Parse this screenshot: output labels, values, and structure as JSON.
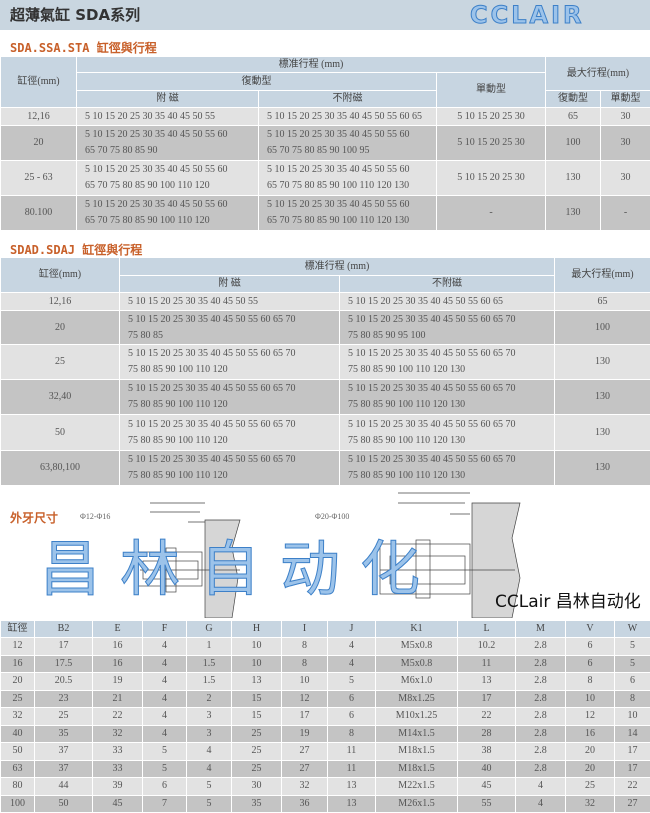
{
  "title": "超薄氣缸 SDA系列",
  "t1": {
    "heading": "SDA.SSA.STA 缸徑與行程",
    "h_bore": "缸徑(mm)",
    "h_std": "標准行程 (mm)",
    "h_double": "復動型",
    "h_single": "單動型",
    "h_mag": "附 磁",
    "h_nomag": "不附磁",
    "h_max": "最大行程(mm)",
    "h_max_double": "復動型",
    "h_max_single": "單動型",
    "rows": [
      {
        "bore": "12,16",
        "mag": [
          "5 10 15 20 25 30 35 40 45 50 55"
        ],
        "nomag": [
          "5 10 15 20 25 30 35 40 45 50 55 60 65"
        ],
        "single": "5 10 15 20 25 30",
        "maxd": "65",
        "maxs": "30"
      },
      {
        "bore": "20",
        "mag": [
          "5 10 15 20 25 30 35 40 45 50 55 60",
          "65 70 75 80 85 90"
        ],
        "nomag": [
          "5 10 15 20 25 30 35 40 45 50 55 60",
          "65 70 75 80 85 90 100 95"
        ],
        "single": "5 10 15 20 25 30",
        "maxd": "100",
        "maxs": "30"
      },
      {
        "bore": "25 - 63",
        "mag": [
          "5 10 15 20 25 30 35 40 45 50 55 60",
          "65 70 75 80 85 90 100 110 120"
        ],
        "nomag": [
          "5 10 15 20 25 30 35 40 45 50 55 60",
          "65 70 75 80 85 90 100 110 120 130"
        ],
        "single": "5 10 15 20 25 30",
        "maxd": "130",
        "maxs": "30"
      },
      {
        "bore": "80.100",
        "mag": [
          "5 10 15 20 25 30 35 40 45 50 55 60",
          "65 70 75 80 85 90 100 110 120"
        ],
        "nomag": [
          "5 10 15 20 25 30 35 40 45 50 55 60",
          "65 70 75 80 85 90 100 110 120 130"
        ],
        "single": "-",
        "maxd": "130",
        "maxs": "-"
      }
    ]
  },
  "watermark1": "CCLAIR",
  "t2": {
    "heading": "SDAD.SDAJ 缸徑與行程",
    "h_bore": "缸徑(mm)",
    "h_std": "標准行程 (mm)",
    "h_mag": "附 磁",
    "h_nomag": "不附磁",
    "h_max": "最大行程(mm)",
    "rows": [
      {
        "bore": "12,16",
        "mag": [
          "5 10 15 20 25 30 35 40 45 50 55"
        ],
        "nomag": [
          "5 10 15 20 25 30 35 40 45 50 55 60 65"
        ],
        "max": "65"
      },
      {
        "bore": "20",
        "mag": [
          "5 10 15 20 25 30 35 40 45 50 55 60 65 70",
          "75 80 85"
        ],
        "nomag": [
          "5 10 15 20 25 30 35 40 45 50 55 60 65 70",
          "75 80 85 90 95 100"
        ],
        "max": "100"
      },
      {
        "bore": "25",
        "mag": [
          "5 10 15 20 25 30 35 40 45 50 55 60 65 70",
          "75 80 85 90 100 110 120"
        ],
        "nomag": [
          "5 10 15 20 25 30 35 40 45 50 55 60 65 70",
          "75 80 85 90 100 110 120 130"
        ],
        "max": "130"
      },
      {
        "bore": "32,40",
        "mag": [
          "5 10 15 20 25 30 35 40 45 50 55 60 65 70",
          "75 80 85 90 100 110 120"
        ],
        "nomag": [
          "5 10 15 20 25 30 35 40 45 50 55 60 65 70",
          "75 80 85 90 100 110 120 130"
        ],
        "max": "130"
      },
      {
        "bore": "50",
        "mag": [
          "5 10 15 20 25 30 35 40 45 50 55 60 65 70",
          "75 80 85 90 100 110 120"
        ],
        "nomag": [
          "5 10 15 20 25 30 35 40 45 50 55 60 65 70",
          "75 80 85 90 100 110 120 130"
        ],
        "max": "130"
      },
      {
        "bore": "63,80,100",
        "mag": [
          "5 10 15 20 25 30 35 40 45 50 55 60 65 70",
          "75 80 85 90 100 110 120"
        ],
        "nomag": [
          "5 10 15 20 25 30 35 40 45 50 55 60 65 70",
          "75 80 85 90 100 110 120 130"
        ],
        "max": "130"
      }
    ]
  },
  "diagram": {
    "heading": "外牙尺寸",
    "label1": "Φ12-Φ16",
    "label2": "Φ20-Φ100"
  },
  "watermark2": "昌林自动化",
  "t3": {
    "headers": [
      "缸徑",
      "B2",
      "E",
      "F",
      "G",
      "H",
      "I",
      "J",
      "K1",
      "L",
      "M",
      "V",
      "W"
    ],
    "rows": [
      [
        "12",
        "17",
        "16",
        "4",
        "1",
        "10",
        "8",
        "4",
        "M5x0.8",
        "10.2",
        "2.8",
        "6",
        "5"
      ],
      [
        "16",
        "17.5",
        "16",
        "4",
        "1.5",
        "10",
        "8",
        "4",
        "M5x0.8",
        "11",
        "2.8",
        "6",
        "5"
      ],
      [
        "20",
        "20.5",
        "19",
        "4",
        "1.5",
        "13",
        "10",
        "5",
        "M6x1.0",
        "13",
        "2.8",
        "8",
        "6"
      ],
      [
        "25",
        "23",
        "21",
        "4",
        "2",
        "15",
        "12",
        "6",
        "M8x1.25",
        "17",
        "2.8",
        "10",
        "8"
      ],
      [
        "32",
        "25",
        "22",
        "4",
        "3",
        "15",
        "17",
        "6",
        "M10x1.25",
        "22",
        "2.8",
        "12",
        "10"
      ],
      [
        "40",
        "35",
        "32",
        "4",
        "3",
        "25",
        "19",
        "8",
        "M14x1.5",
        "28",
        "2.8",
        "16",
        "14"
      ],
      [
        "50",
        "37",
        "33",
        "5",
        "4",
        "25",
        "27",
        "11",
        "M18x1.5",
        "38",
        "2.8",
        "20",
        "17"
      ],
      [
        "63",
        "37",
        "33",
        "5",
        "4",
        "25",
        "27",
        "11",
        "M18x1.5",
        "40",
        "2.8",
        "20",
        "17"
      ],
      [
        "80",
        "44",
        "39",
        "6",
        "5",
        "30",
        "32",
        "13",
        "M22x1.5",
        "45",
        "4",
        "25",
        "22"
      ],
      [
        "100",
        "50",
        "45",
        "7",
        "5",
        "35",
        "36",
        "13",
        "M26x1.5",
        "55",
        "4",
        "32",
        "27"
      ]
    ]
  },
  "logo": "CCLair 昌林自动化"
}
